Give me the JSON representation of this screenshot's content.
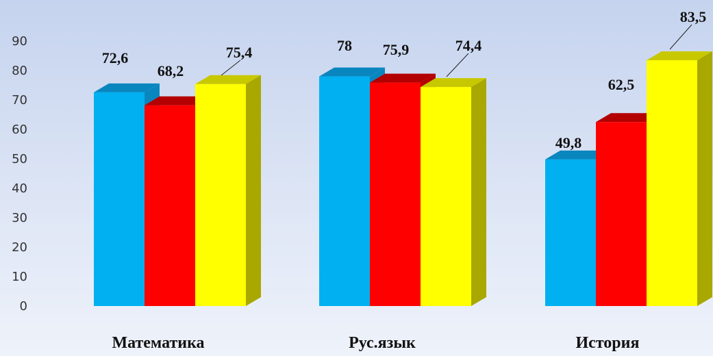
{
  "chart_data": {
    "type": "bar",
    "categories": [
      "Математика",
      "Рус.язык",
      "История"
    ],
    "series": [
      {
        "values": [
          72.6,
          78,
          49.8
        ],
        "labels": [
          "72,6",
          "78",
          "49,8"
        ],
        "color": "#00b0f0",
        "top_color": "#0a86bf",
        "side_color": "#0a86bf"
      },
      {
        "values": [
          68.2,
          75.9,
          62.5
        ],
        "labels": [
          "68,2",
          "75,9",
          "62,5"
        ],
        "color": "#ff0000",
        "top_color": "#b30000",
        "side_color": "#b30000"
      },
      {
        "values": [
          75.4,
          74.4,
          83.5
        ],
        "labels": [
          "75,4",
          "74,4",
          "83,5"
        ],
        "color": "#ffff00",
        "top_color": "#c8c800",
        "side_color": "#a8a800"
      }
    ],
    "ylim": [
      0,
      90
    ],
    "yticks": [
      0,
      10,
      20,
      30,
      40,
      50,
      60,
      70,
      80,
      90
    ],
    "ytick_labels": [
      "0",
      "10",
      "20",
      "30",
      "40",
      "50",
      "60",
      "70",
      "80",
      "90"
    ],
    "title": "",
    "xlabel": "",
    "ylabel": "",
    "legend": false,
    "grid": false
  }
}
